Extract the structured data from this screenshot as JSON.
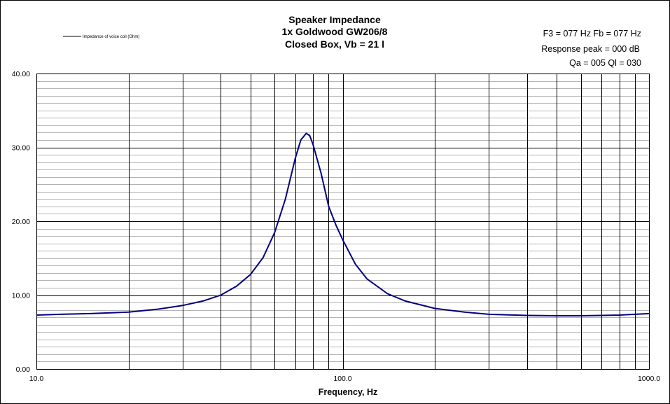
{
  "chart_data": {
    "type": "line",
    "title_lines": [
      "Speaker Impedance",
      "1x Goldwood GW206/8",
      "Closed Box, Vb = 21 l"
    ],
    "annotations": [
      "F3 = 077 Hz  Fb = 077 Hz",
      "Response peak = 000 dB",
      "Qa = 005  Ql = 030"
    ],
    "xlabel": "Frequency,  Hz",
    "ylabel": "",
    "x_scale": "log",
    "xlim": [
      10,
      1000
    ],
    "ylim": [
      0,
      40
    ],
    "x_tick_labels": [
      {
        "value": 10,
        "label": "10.0"
      },
      {
        "value": 100,
        "label": "100.0"
      },
      {
        "value": 1000,
        "label": "1000.0"
      }
    ],
    "y_tick_labels": [
      {
        "value": 0,
        "label": "0.00"
      },
      {
        "value": 10,
        "label": "10.00"
      },
      {
        "value": 20,
        "label": "20.00"
      },
      {
        "value": 30,
        "label": "30.00"
      },
      {
        "value": 40,
        "label": "40.00"
      }
    ],
    "grid": true,
    "legend_position": "top-left",
    "series": [
      {
        "name": "Impedance of voice coil (Ohm)",
        "color": "#000080",
        "x": [
          10,
          12,
          15,
          20,
          25,
          30,
          35,
          40,
          45,
          50,
          55,
          60,
          65,
          70,
          73,
          76,
          78,
          80,
          85,
          90,
          95,
          100,
          110,
          120,
          140,
          160,
          200,
          250,
          300,
          400,
          500,
          600,
          700,
          800,
          1000
        ],
        "y": [
          7.3,
          7.4,
          7.5,
          7.7,
          8.1,
          8.6,
          9.2,
          10.0,
          11.2,
          12.8,
          15.1,
          18.5,
          23.0,
          28.5,
          31.0,
          31.9,
          31.6,
          30.4,
          26.5,
          22.0,
          19.5,
          17.5,
          14.2,
          12.2,
          10.2,
          9.2,
          8.2,
          7.7,
          7.4,
          7.25,
          7.2,
          7.2,
          7.25,
          7.3,
          7.5
        ]
      }
    ]
  }
}
